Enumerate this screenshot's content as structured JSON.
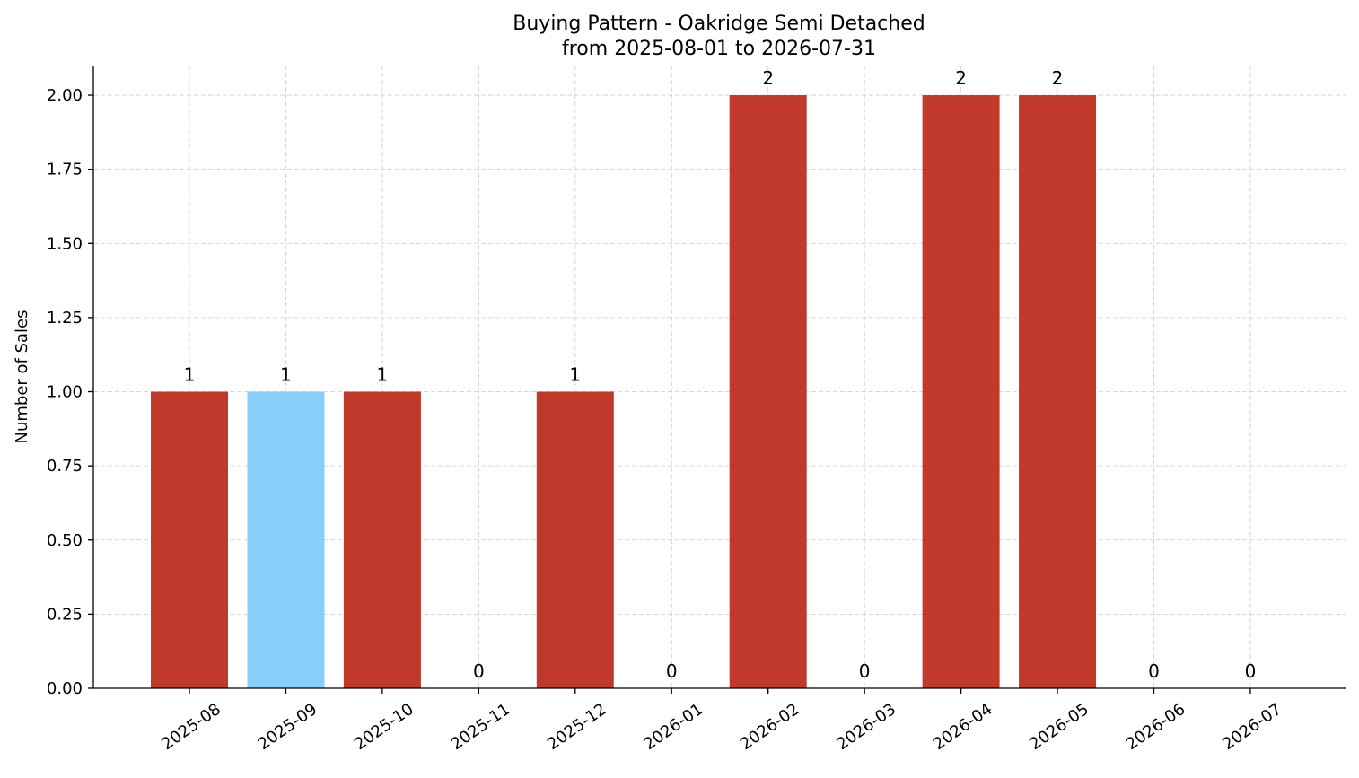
{
  "chart_data": {
    "type": "bar",
    "title": "Buying Pattern - Oakridge Semi Detached",
    "subtitle": "from 2025-08-01 to 2026-07-31",
    "xlabel": "",
    "ylabel": "Number of Sales",
    "ylim": [
      0,
      2.1
    ],
    "yticks": [
      "0.00",
      "0.25",
      "0.50",
      "0.75",
      "1.00",
      "1.25",
      "1.50",
      "1.75",
      "2.00"
    ],
    "ytick_values": [
      0,
      0.25,
      0.5,
      0.75,
      1.0,
      1.25,
      1.5,
      1.75,
      2.0
    ],
    "categories": [
      "2025-08",
      "2025-09",
      "2025-10",
      "2025-11",
      "2025-12",
      "2026-01",
      "2026-02",
      "2026-03",
      "2026-04",
      "2026-05",
      "2026-06",
      "2026-07"
    ],
    "values": [
      1,
      1,
      1,
      0,
      1,
      0,
      2,
      0,
      2,
      2,
      0,
      0
    ],
    "bar_colors": [
      "#c0392b",
      "#87cefa",
      "#c0392b",
      "#c0392b",
      "#c0392b",
      "#c0392b",
      "#c0392b",
      "#c0392b",
      "#c0392b",
      "#c0392b",
      "#c0392b",
      "#c0392b"
    ],
    "grid": true,
    "legend": "none"
  }
}
